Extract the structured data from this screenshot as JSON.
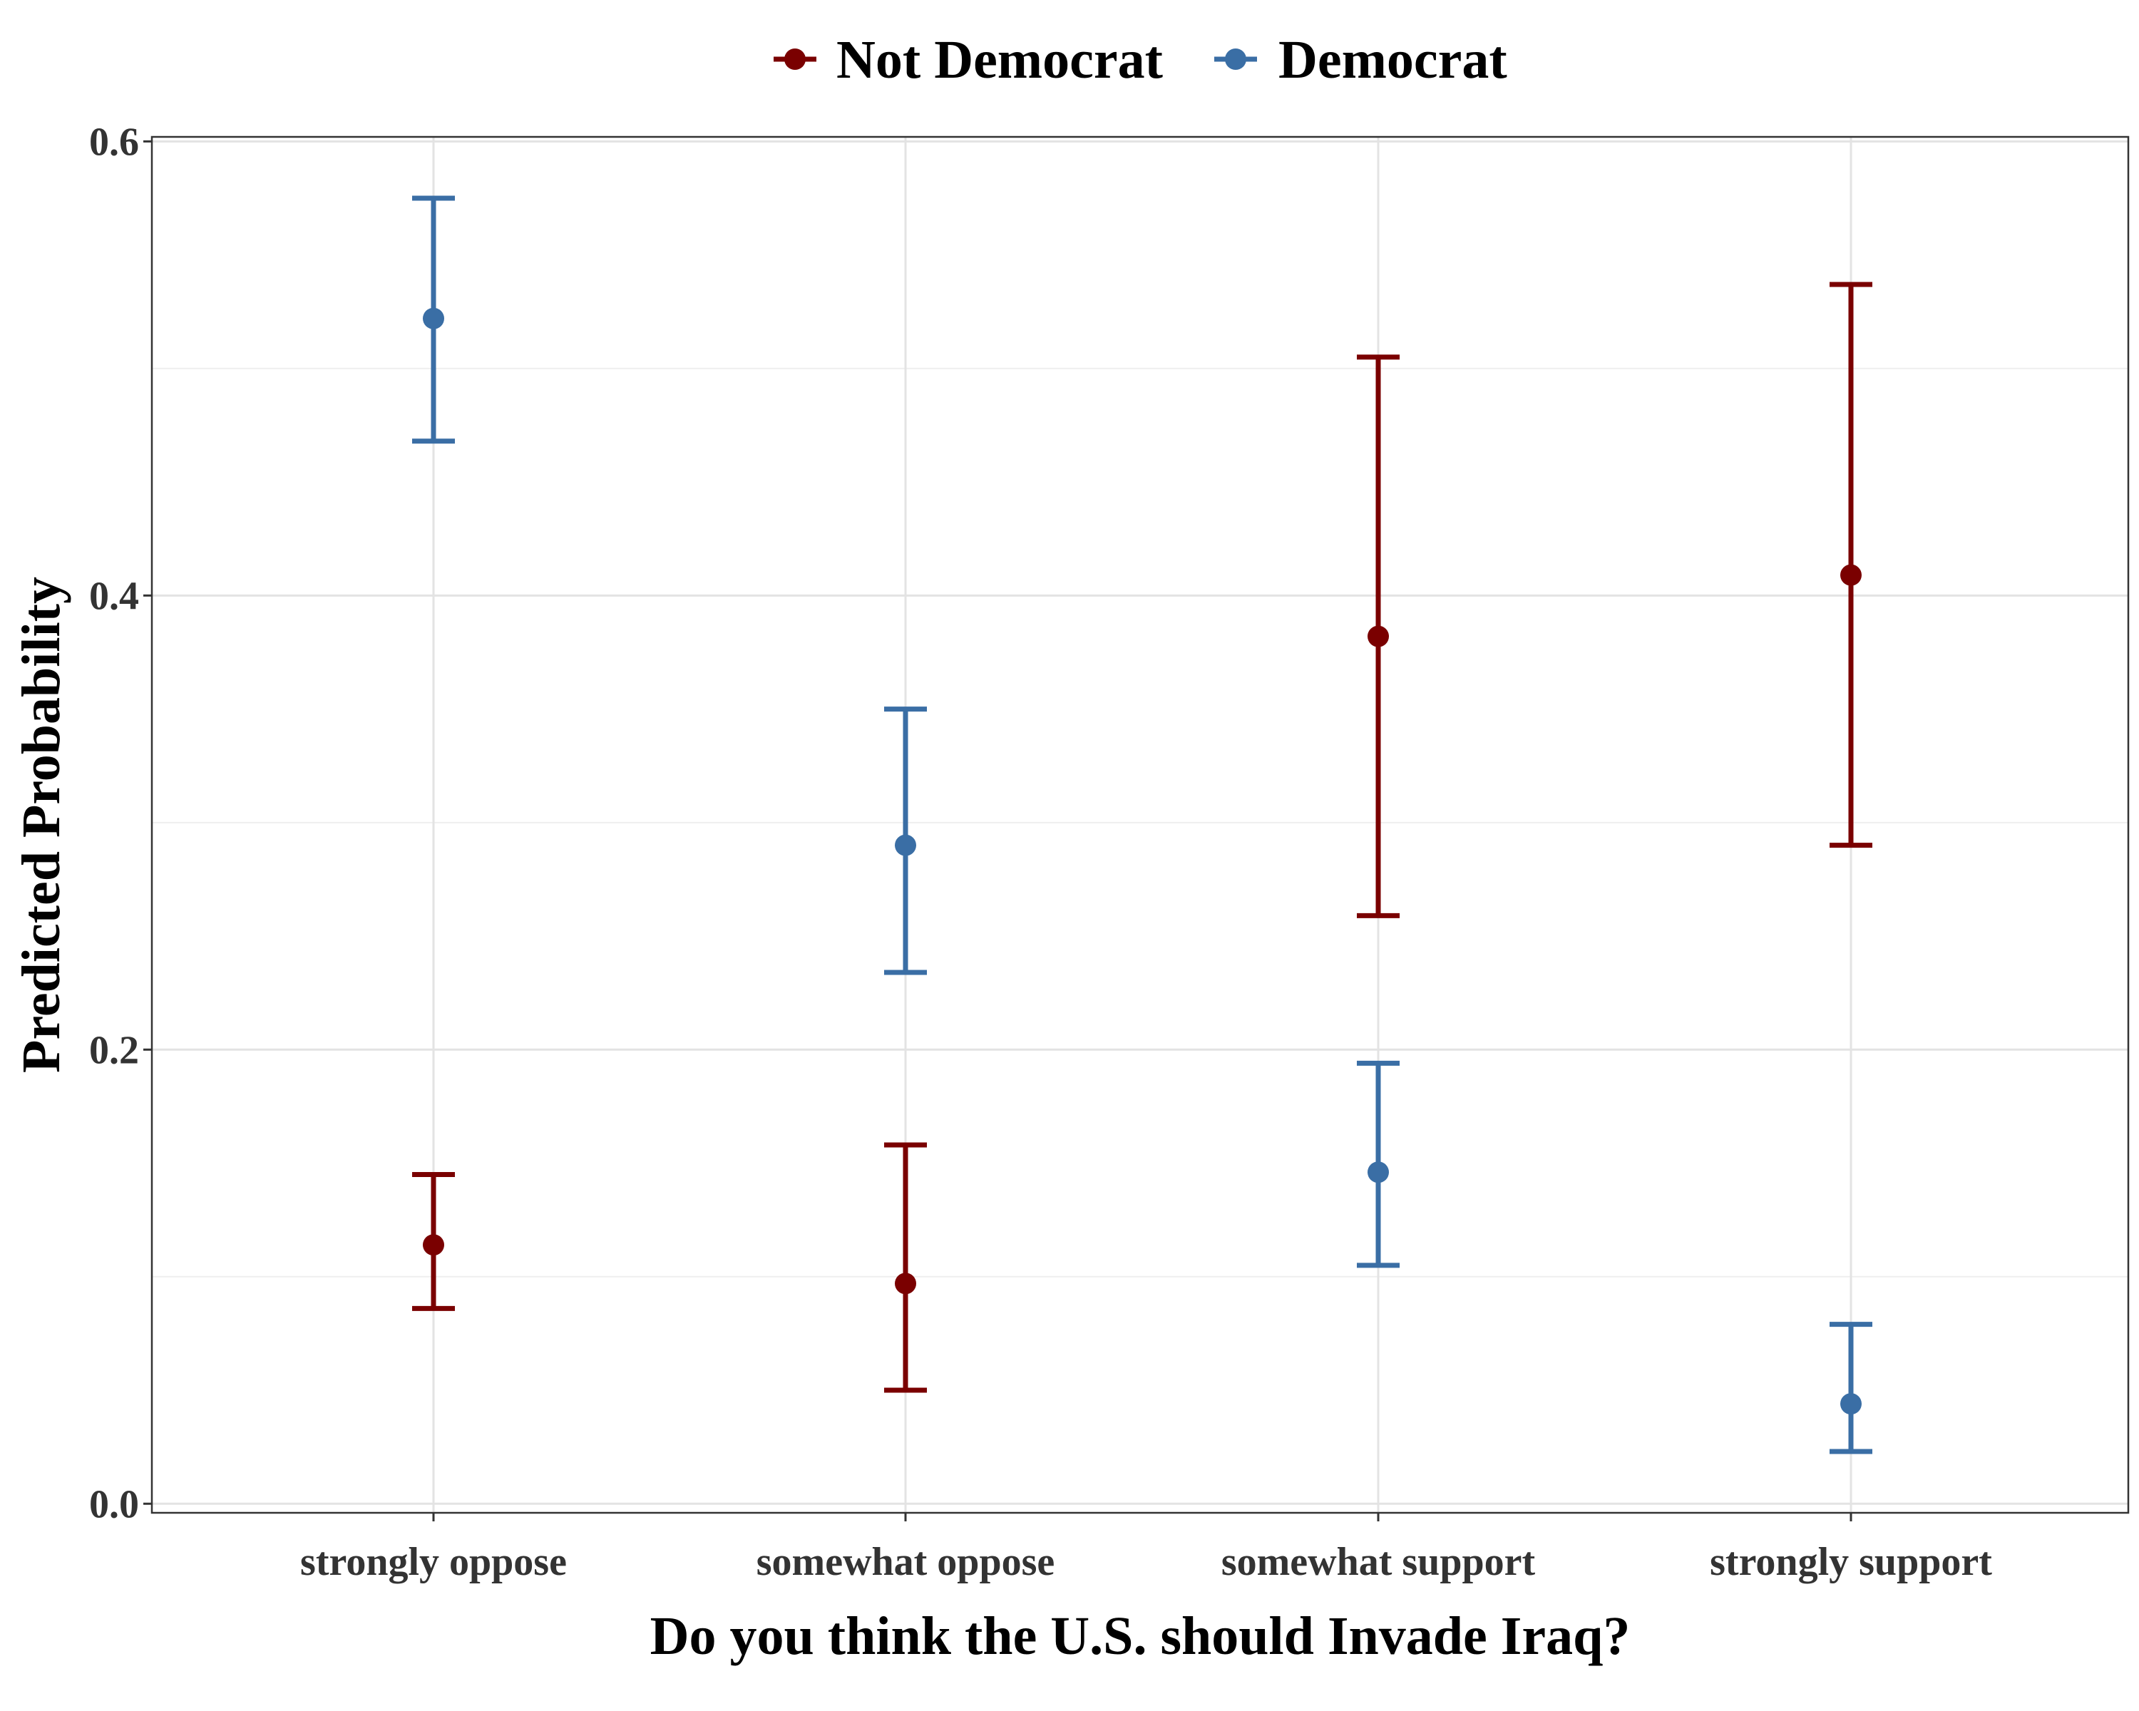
{
  "chart_data": {
    "type": "scatter",
    "subtype": "point-with-error-bars",
    "xlabel": "Do you think the U.S. should Invade Iraq?",
    "ylabel": "Predicted Probability",
    "categories": [
      "strongly oppose",
      "somewhat oppose",
      "somewhat support",
      "strongly support"
    ],
    "ylim": [
      -0.004,
      0.602
    ],
    "yticks": [
      0.0,
      0.2,
      0.4,
      0.6
    ],
    "ytick_labels": [
      "0.0",
      "0.2",
      "0.4",
      "0.6"
    ],
    "grid": true,
    "legend_position": "top",
    "series": [
      {
        "name": "Not Democrat",
        "color": "#7a0000",
        "values": [
          0.114,
          0.097,
          0.382,
          0.409
        ],
        "lower": [
          0.086,
          0.05,
          0.259,
          0.29
        ],
        "upper": [
          0.145,
          0.158,
          0.505,
          0.537
        ]
      },
      {
        "name": "Democrat",
        "color": "#3a6ea5",
        "values": [
          0.522,
          0.29,
          0.146,
          0.044
        ],
        "lower": [
          0.468,
          0.234,
          0.105,
          0.023
        ],
        "upper": [
          0.575,
          0.35,
          0.194,
          0.079
        ]
      }
    ]
  }
}
